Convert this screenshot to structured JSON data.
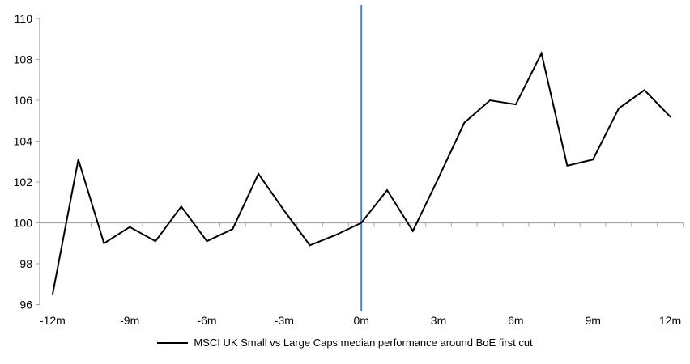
{
  "chart_data": {
    "type": "line",
    "title": "",
    "xlabel": "",
    "ylabel": "",
    "series": [
      {
        "name": "MSCI UK Small vs Large Caps median performance around BoE first cut",
        "color": "#000000",
        "x": [
          -12,
          -11,
          -10,
          -9,
          -8,
          -7,
          -6,
          -5,
          -4,
          -3,
          -2,
          -1,
          0,
          1,
          2,
          3,
          4,
          5,
          6,
          7,
          8,
          9,
          10,
          11,
          12
        ],
        "values": [
          96.5,
          103.1,
          99.0,
          99.8,
          99.1,
          100.8,
          99.1,
          99.7,
          102.4,
          100.6,
          98.9,
          99.4,
          100.0,
          101.6,
          99.6,
          102.2,
          104.9,
          106.0,
          105.8,
          108.3,
          102.8,
          103.1,
          105.6,
          106.5,
          105.2
        ]
      }
    ],
    "xlim": [
      -12.5,
      12.5
    ],
    "ylim": [
      96,
      110
    ],
    "y_ticks": [
      96,
      98,
      100,
      102,
      104,
      106,
      108,
      110
    ],
    "x_tick_values": [
      -12,
      -9,
      -6,
      -3,
      0,
      3,
      6,
      9,
      12
    ],
    "x_tick_labels": [
      "-12m",
      "-9m",
      "-6m",
      "-3m",
      "0m",
      "3m",
      "6m",
      "9m",
      "12m"
    ],
    "baseline_value": 100,
    "category_tick_count": 25,
    "event_line": {
      "x": 0,
      "color": "#4F81BD"
    },
    "axis_color": "#A6A6A6",
    "grid": false,
    "legend_position": "bottom"
  }
}
